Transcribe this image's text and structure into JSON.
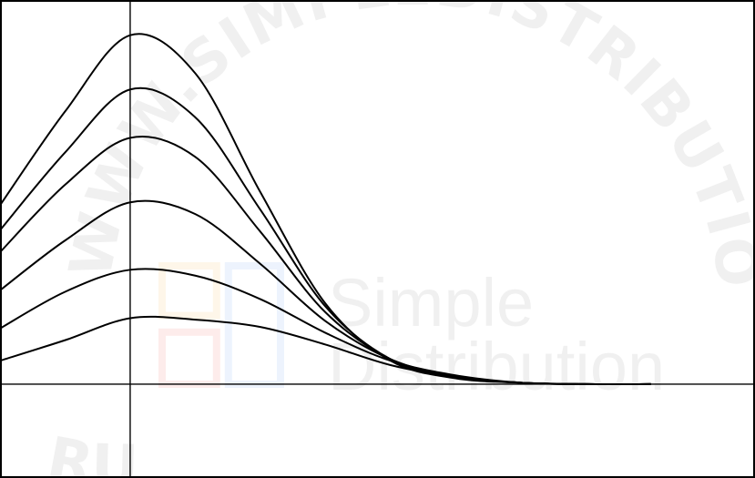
{
  "chart_data": {
    "type": "line",
    "title": "",
    "xlabel": "",
    "ylabel": "",
    "grid": false,
    "legend": "none",
    "xlim": [
      -1.0,
      4.8
    ],
    "ylim": [
      -0.64,
      2.62
    ],
    "x_axis_at": 0,
    "y_axis_at": 0,
    "series": [
      {
        "points": [
          [
            -1.0,
            0.16
          ],
          [
            -0.5,
            0.3
          ],
          [
            0.0,
            0.45
          ],
          [
            0.5,
            0.44
          ],
          [
            1.0,
            0.39
          ],
          [
            1.5,
            0.27
          ],
          [
            2.0,
            0.13
          ],
          [
            2.5,
            0.05
          ],
          [
            3.0,
            0.01
          ],
          [
            3.5,
            0.0
          ],
          [
            4.0,
            0.0
          ]
        ]
      },
      {
        "points": [
          [
            -1.0,
            0.38
          ],
          [
            -0.5,
            0.63
          ],
          [
            0.0,
            0.78
          ],
          [
            0.5,
            0.74
          ],
          [
            1.0,
            0.58
          ],
          [
            1.5,
            0.35
          ],
          [
            2.0,
            0.16
          ],
          [
            2.5,
            0.06
          ],
          [
            3.0,
            0.01
          ],
          [
            3.5,
            0.0
          ],
          [
            4.0,
            0.0
          ]
        ]
      },
      {
        "points": [
          [
            -1.0,
            0.64
          ],
          [
            -0.5,
            0.98
          ],
          [
            0.0,
            1.24
          ],
          [
            0.5,
            1.16
          ],
          [
            1.0,
            0.82
          ],
          [
            1.5,
            0.43
          ],
          [
            2.0,
            0.17
          ],
          [
            2.5,
            0.05
          ],
          [
            3.0,
            0.01
          ],
          [
            3.5,
            0.0
          ],
          [
            4.0,
            0.0
          ]
        ]
      },
      {
        "points": [
          [
            -1.0,
            0.9
          ],
          [
            -0.5,
            1.36
          ],
          [
            0.0,
            1.68
          ],
          [
            0.5,
            1.55
          ],
          [
            1.0,
            1.04
          ],
          [
            1.5,
            0.49
          ],
          [
            2.0,
            0.17
          ],
          [
            2.5,
            0.05
          ],
          [
            3.0,
            0.01
          ],
          [
            3.5,
            0.0
          ],
          [
            4.0,
            0.0
          ]
        ]
      },
      {
        "points": [
          [
            -1.0,
            1.05
          ],
          [
            -0.5,
            1.58
          ],
          [
            0.0,
            2.01
          ],
          [
            0.5,
            1.82
          ],
          [
            1.0,
            1.19
          ],
          [
            1.5,
            0.53
          ],
          [
            2.0,
            0.17
          ],
          [
            2.5,
            0.05
          ],
          [
            3.0,
            0.01
          ],
          [
            3.5,
            0.0
          ],
          [
            4.0,
            0.0
          ]
        ]
      },
      {
        "points": [
          [
            -1.0,
            1.22
          ],
          [
            -0.5,
            1.86
          ],
          [
            0.0,
            2.38
          ],
          [
            0.5,
            2.12
          ],
          [
            1.0,
            1.31
          ],
          [
            1.5,
            0.55
          ],
          [
            2.0,
            0.16
          ],
          [
            2.5,
            0.04
          ],
          [
            3.0,
            0.01
          ],
          [
            3.5,
            0.0
          ],
          [
            4.0,
            0.0
          ]
        ]
      }
    ]
  },
  "watermark": {
    "arc_text": "WWW.SIMPLEDISTRIBUTION.RU",
    "arc_text_bottom": "RU",
    "brand_line1": "Simple",
    "brand_line2": "Distribution",
    "logo_colors": [
      "#f5a623",
      "#e8453c",
      "#4a86e8"
    ]
  }
}
